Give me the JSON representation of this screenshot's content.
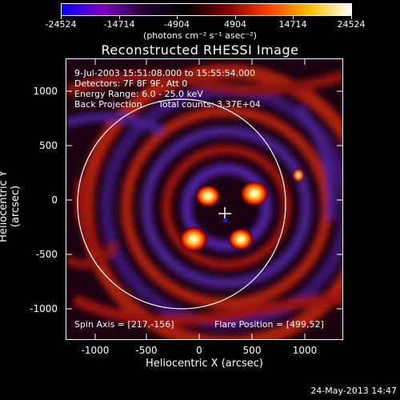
{
  "colorbar": {
    "tick_labels": [
      "-24524",
      "-14714",
      "-4904",
      "4904",
      "14714",
      "24524"
    ],
    "units": "(photons cm⁻² s⁻¹ asec⁻²)",
    "colors": [
      "#0000ff",
      "#8000c0",
      "#200030",
      "#000000",
      "#800000",
      "#ff4000",
      "#ffc000",
      "#ffffff"
    ]
  },
  "title": "Reconstructed RHESSI Image",
  "info": {
    "time_range": "9-Jul-2003 15:51:08.000 to 15:55:54.000",
    "detectors": "Detectors: 7F 8F 9F, Att 0",
    "energy": "Energy Range: 6.0 - 25.0 keV",
    "method": "Back Projection",
    "counts": "Total counts: 3.37E+04",
    "spin_axis": "Spin Axis = [217,-156]",
    "flare_position": "Flare Position = [499,52]"
  },
  "axes": {
    "xlabel": "Heliocentric X (arcsec)",
    "ylabel": "Heliocentric Y (arcsec)",
    "x_ticks": [
      "-1000",
      "-500",
      "0",
      "500",
      "1000"
    ],
    "y_ticks": [
      "1000",
      "500",
      "0",
      "-500",
      "-1000"
    ],
    "xlim": [
      -1280,
      1280
    ],
    "ylim": [
      -1280,
      1280
    ]
  },
  "timestamp": "24-May-2013 14:47",
  "icons": {
    "center_marker": "crosshair-icon"
  }
}
